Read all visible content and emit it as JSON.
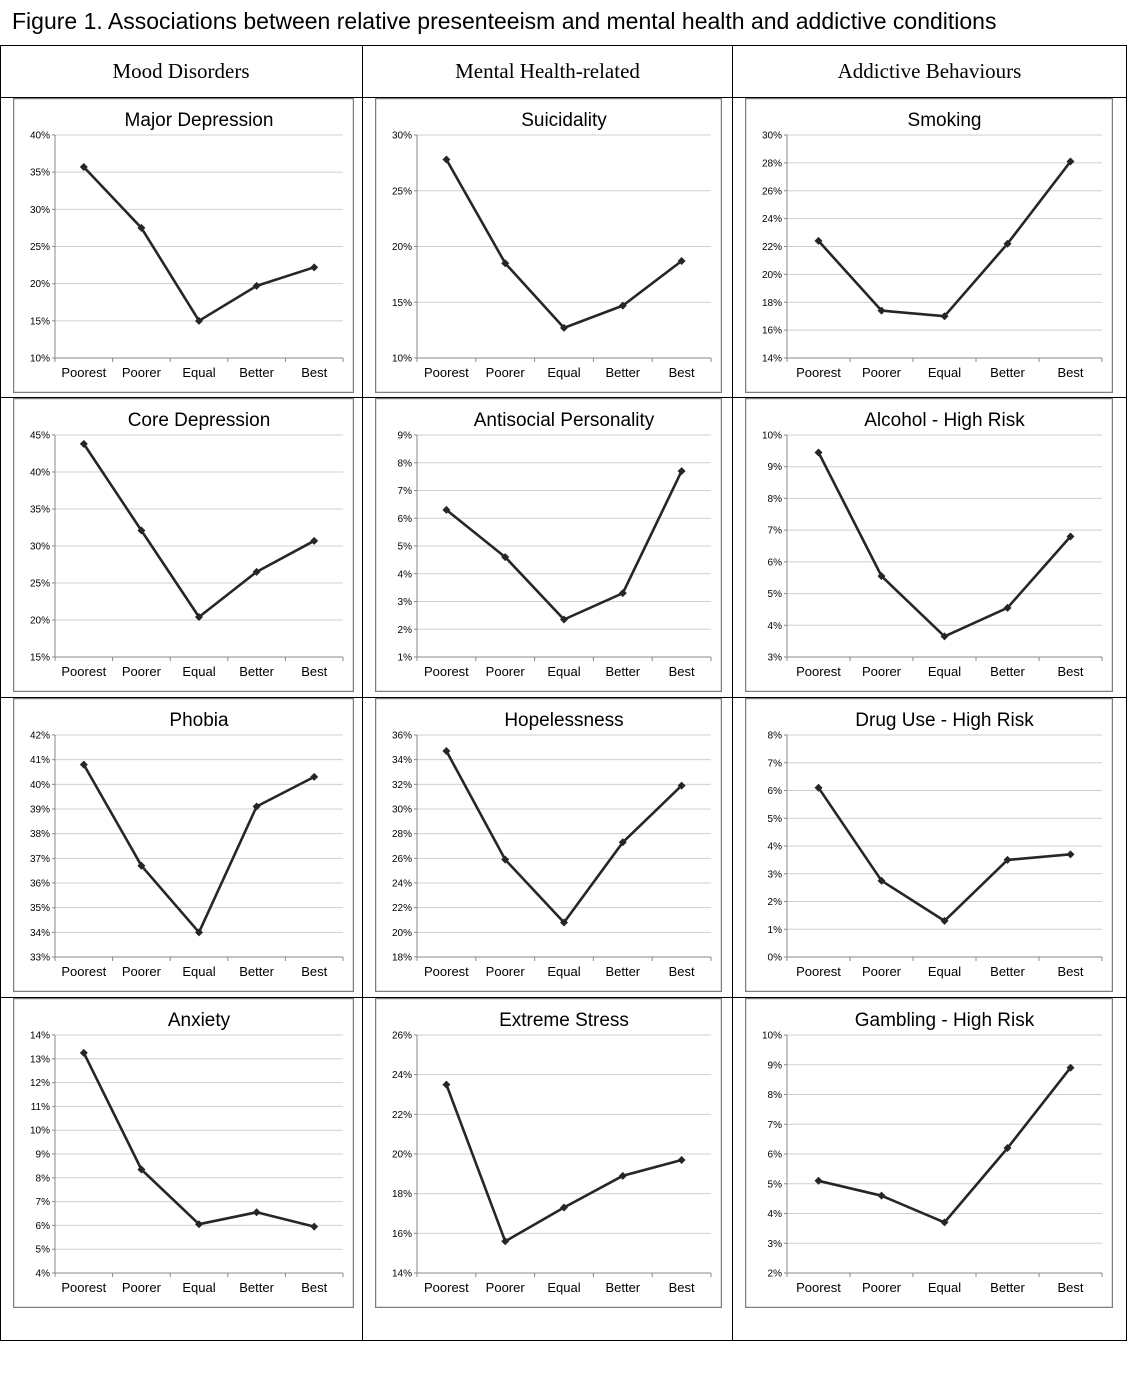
{
  "figure_title": "Figure 1. Associations between relative presenteeism and mental health and addictive conditions",
  "columns": [
    "Mood Disorders",
    "Mental Health-related",
    "Addictive Behaviours"
  ],
  "colors": {
    "line": "#262626",
    "grid": "#cfcfcf",
    "frame": "#7f7f7f"
  },
  "chart_data": [
    {
      "type": "line",
      "title": "Major Depression",
      "categories": [
        "Poorest",
        "Poorer",
        "Equal",
        "Better",
        "Best"
      ],
      "values": [
        35.7,
        27.5,
        15.0,
        19.7,
        22.2
      ],
      "ylim": [
        10,
        40
      ],
      "yticks": [
        10,
        15,
        20,
        25,
        30,
        35,
        40
      ],
      "ytick_suffix": "%",
      "grid": true
    },
    {
      "type": "line",
      "title": "Suicidality",
      "categories": [
        "Poorest",
        "Poorer",
        "Equal",
        "Better",
        "Best"
      ],
      "values": [
        27.8,
        18.5,
        12.7,
        14.7,
        18.7
      ],
      "ylim": [
        10,
        30
      ],
      "yticks": [
        10,
        15,
        20,
        25,
        30
      ],
      "ytick_suffix": "%",
      "grid": true
    },
    {
      "type": "line",
      "title": "Smoking",
      "categories": [
        "Poorest",
        "Poorer",
        "Equal",
        "Better",
        "Best"
      ],
      "values": [
        22.4,
        17.4,
        17.0,
        22.2,
        28.1
      ],
      "ylim": [
        14,
        30
      ],
      "yticks": [
        14,
        16,
        18,
        20,
        22,
        24,
        26,
        28,
        30
      ],
      "ytick_suffix": "%",
      "grid": true
    },
    {
      "type": "line",
      "title": "Core Depression",
      "categories": [
        "Poorest",
        "Poorer",
        "Equal",
        "Better",
        "Best"
      ],
      "values": [
        43.8,
        32.1,
        20.4,
        26.5,
        30.7
      ],
      "ylim": [
        15,
        45
      ],
      "yticks": [
        15,
        20,
        25,
        30,
        35,
        40,
        45
      ],
      "ytick_suffix": "%",
      "grid": true
    },
    {
      "type": "line",
      "title": "Antisocial Personality",
      "categories": [
        "Poorest",
        "Poorer",
        "Equal",
        "Better",
        "Best"
      ],
      "values": [
        6.3,
        4.6,
        2.35,
        3.3,
        7.7
      ],
      "ylim": [
        1,
        9
      ],
      "yticks": [
        1,
        2,
        3,
        4,
        5,
        6,
        7,
        8,
        9
      ],
      "ytick_suffix": "%",
      "grid": true
    },
    {
      "type": "line",
      "title": "Alcohol - High Risk",
      "categories": [
        "Poorest",
        "Poorer",
        "Equal",
        "Better",
        "Best"
      ],
      "values": [
        9.45,
        5.55,
        3.65,
        4.55,
        6.8
      ],
      "ylim": [
        3,
        10
      ],
      "yticks": [
        3,
        4,
        5,
        6,
        7,
        8,
        9,
        10
      ],
      "ytick_suffix": "%",
      "grid": true
    },
    {
      "type": "line",
      "title": "Phobia",
      "categories": [
        "Poorest",
        "Poorer",
        "Equal",
        "Better",
        "Best"
      ],
      "values": [
        40.8,
        36.7,
        34.0,
        39.1,
        40.3
      ],
      "ylim": [
        33,
        42
      ],
      "yticks": [
        33,
        34,
        35,
        36,
        37,
        38,
        39,
        40,
        41,
        42
      ],
      "ytick_suffix": "%",
      "grid": true
    },
    {
      "type": "line",
      "title": "Hopelessness",
      "categories": [
        "Poorest",
        "Poorer",
        "Equal",
        "Better",
        "Best"
      ],
      "values": [
        34.7,
        25.9,
        20.8,
        27.3,
        31.9
      ],
      "ylim": [
        18,
        36
      ],
      "yticks": [
        18,
        20,
        22,
        24,
        26,
        28,
        30,
        32,
        34,
        36
      ],
      "ytick_suffix": "%",
      "grid": true
    },
    {
      "type": "line",
      "title": "Drug Use - High Risk",
      "categories": [
        "Poorest",
        "Poorer",
        "Equal",
        "Better",
        "Best"
      ],
      "values": [
        6.1,
        2.75,
        1.3,
        3.5,
        3.7
      ],
      "ylim": [
        0,
        8
      ],
      "yticks": [
        0,
        1,
        2,
        3,
        4,
        5,
        6,
        7,
        8
      ],
      "ytick_suffix": "%",
      "grid": true
    },
    {
      "type": "line",
      "title": "Anxiety",
      "categories": [
        "Poorest",
        "Poorer",
        "Equal",
        "Better",
        "Best"
      ],
      "values": [
        13.25,
        8.35,
        6.05,
        6.55,
        5.95
      ],
      "ylim": [
        4,
        14
      ],
      "yticks": [
        4,
        5,
        6,
        7,
        8,
        9,
        10,
        11,
        12,
        13,
        14
      ],
      "ytick_suffix": "%",
      "grid": true
    },
    {
      "type": "line",
      "title": "Extreme Stress",
      "categories": [
        "Poorest",
        "Poorer",
        "Equal",
        "Better",
        "Best"
      ],
      "values": [
        23.5,
        15.6,
        17.3,
        18.9,
        19.7
      ],
      "ylim": [
        14,
        26
      ],
      "yticks": [
        14,
        16,
        18,
        20,
        22,
        24,
        26
      ],
      "ytick_suffix": "%",
      "grid": true
    },
    {
      "type": "line",
      "title": "Gambling - High Risk",
      "categories": [
        "Poorest",
        "Poorer",
        "Equal",
        "Better",
        "Best"
      ],
      "values": [
        5.1,
        4.6,
        3.7,
        6.2,
        8.9
      ],
      "ylim": [
        2,
        10
      ],
      "yticks": [
        2,
        3,
        4,
        5,
        6,
        7,
        8,
        9,
        10
      ],
      "ytick_suffix": "%",
      "grid": true
    }
  ]
}
